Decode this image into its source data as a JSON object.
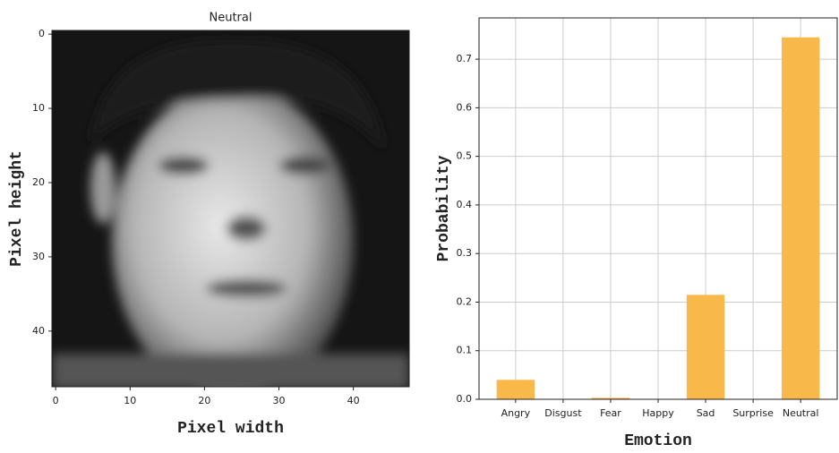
{
  "chart_data": [
    {
      "type": "image",
      "title": "Neutral",
      "xlabel": "Pixel width",
      "ylabel": "Pixel height",
      "xlim": [
        -0.5,
        47.5
      ],
      "ylim": [
        47.5,
        -0.5
      ],
      "xticks": [
        0,
        10,
        20,
        30,
        40
      ],
      "yticks": [
        0,
        10,
        20,
        30,
        40
      ]
    },
    {
      "type": "bar",
      "xlabel": "Emotion",
      "ylabel": "Probability",
      "categories": [
        "Angry",
        "Disgust",
        "Fear",
        "Happy",
        "Sad",
        "Surprise",
        "Neutral"
      ],
      "values": [
        0.04,
        0,
        0.003,
        0,
        0.215,
        0,
        0.745
      ],
      "color": "#f9b94a",
      "ylim": [
        0,
        0.785
      ],
      "yticks": [
        {
          "value": 0,
          "label": "0.0"
        },
        0.1,
        0.2,
        0.3,
        0.4,
        0.5,
        0.6,
        0.7
      ],
      "grid": true
    }
  ]
}
